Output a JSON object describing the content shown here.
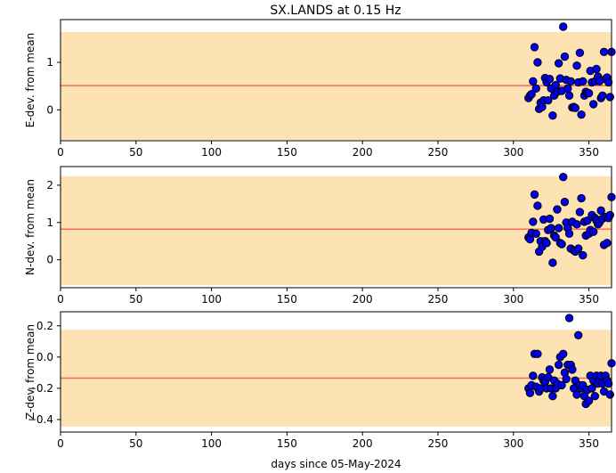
{
  "title": "SX.LANDS at 0.15 Hz",
  "colors": {
    "band": "#fde3b4",
    "mean_line": "#f46b5d",
    "marker_fill": "#0000ee",
    "marker_edge": "#000000"
  },
  "chart_data": [
    {
      "type": "scatter",
      "ylabel": "E-dev. from mean",
      "xlim": [
        0,
        365
      ],
      "ylim": [
        -0.65,
        1.9
      ],
      "xticks": [
        "0",
        "50",
        "100",
        "150",
        "200",
        "250",
        "300",
        "350"
      ],
      "yticks": [
        "0",
        "1"
      ],
      "band": [
        -0.63,
        1.64
      ],
      "mean": 0.51,
      "x": [
        310,
        311,
        312,
        313,
        314,
        315,
        316,
        317,
        318,
        319,
        320,
        321,
        322,
        323,
        324,
        325,
        326,
        327,
        328,
        329,
        330,
        331,
        332,
        333,
        334,
        335,
        336,
        337,
        338,
        339,
        340,
        341,
        342,
        343,
        344,
        345,
        346,
        347,
        348,
        349,
        350,
        351,
        352,
        353,
        354,
        355,
        356,
        357,
        358,
        359,
        360,
        361,
        362,
        363,
        364,
        365
      ],
      "values": [
        0.25,
        0.3,
        0.33,
        0.6,
        1.32,
        0.45,
        1.0,
        0.02,
        0.15,
        0.06,
        0.2,
        0.67,
        0.58,
        0.2,
        0.65,
        0.45,
        -0.12,
        0.3,
        0.52,
        0.38,
        0.98,
        0.66,
        0.4,
        1.75,
        1.12,
        0.63,
        0.45,
        0.3,
        0.6,
        0.05,
        0.06,
        0.04,
        0.93,
        0.58,
        1.2,
        -0.1,
        0.6,
        0.3,
        0.38,
        0.35,
        0.35,
        0.82,
        0.58,
        0.12,
        0.6,
        0.86,
        0.7,
        0.6,
        0.25,
        0.3,
        1.22,
        0.65,
        0.68,
        0.58,
        0.27,
        1.22
      ]
    },
    {
      "type": "scatter",
      "ylabel": "N-dev. from mean",
      "xlim": [
        0,
        365
      ],
      "ylim": [
        -0.75,
        2.5
      ],
      "xticks": [
        "0",
        "50",
        "100",
        "150",
        "200",
        "250",
        "300",
        "350"
      ],
      "yticks": [
        "0",
        "1",
        "2"
      ],
      "band": [
        -0.68,
        2.24
      ],
      "mean": 0.82,
      "x": [
        310,
        311,
        312,
        313,
        314,
        315,
        316,
        317,
        318,
        319,
        320,
        321,
        322,
        323,
        324,
        325,
        326,
        327,
        328,
        329,
        330,
        331,
        332,
        333,
        334,
        335,
        336,
        337,
        338,
        339,
        340,
        341,
        342,
        343,
        344,
        345,
        346,
        347,
        348,
        349,
        350,
        351,
        352,
        353,
        354,
        355,
        356,
        357,
        358,
        359,
        360,
        361,
        362,
        363,
        364,
        365
      ],
      "values": [
        0.6,
        0.55,
        0.72,
        1.02,
        1.75,
        0.7,
        1.45,
        0.22,
        0.5,
        0.35,
        1.08,
        0.5,
        0.45,
        0.8,
        1.1,
        0.85,
        -0.08,
        0.65,
        0.6,
        1.35,
        0.85,
        0.45,
        0.42,
        2.22,
        1.55,
        1.0,
        0.85,
        0.7,
        0.3,
        1.02,
        0.25,
        0.22,
        0.95,
        0.3,
        1.28,
        1.65,
        0.12,
        1.02,
        0.65,
        1.05,
        0.7,
        0.8,
        1.2,
        0.75,
        1.12,
        1.05,
        0.95,
        1.0,
        1.32,
        1.1,
        0.4,
        1.15,
        0.45,
        1.12,
        1.2,
        1.68
      ]
    },
    {
      "type": "scatter",
      "ylabel": "Z-dev. from mean",
      "xlabel": "days since 05-May-2024",
      "xlim": [
        0,
        365
      ],
      "ylim": [
        -0.48,
        0.29
      ],
      "xticks": [
        "0",
        "50",
        "100",
        "150",
        "200",
        "250",
        "300",
        "350"
      ],
      "yticks": [
        "0.2",
        "0.0",
        "−0.2",
        "−0.4"
      ],
      "band": [
        -0.445,
        0.175
      ],
      "mean": -0.135,
      "x": [
        310,
        311,
        312,
        313,
        314,
        315,
        316,
        317,
        318,
        319,
        320,
        321,
        322,
        323,
        324,
        325,
        326,
        327,
        328,
        329,
        330,
        331,
        332,
        333,
        334,
        335,
        336,
        337,
        338,
        339,
        340,
        341,
        342,
        343,
        344,
        345,
        346,
        347,
        348,
        349,
        350,
        351,
        352,
        353,
        354,
        355,
        356,
        357,
        358,
        359,
        360,
        361,
        362,
        363,
        364,
        365
      ],
      "values": [
        -0.2,
        -0.23,
        -0.18,
        -0.12,
        0.02,
        -0.19,
        0.02,
        -0.22,
        -0.2,
        -0.13,
        -0.15,
        -0.16,
        -0.2,
        -0.13,
        -0.08,
        -0.2,
        -0.25,
        -0.15,
        -0.2,
        -0.17,
        -0.05,
        0.0,
        -0.18,
        0.02,
        -0.1,
        -0.14,
        -0.05,
        0.25,
        -0.05,
        -0.08,
        -0.2,
        -0.15,
        -0.24,
        0.14,
        -0.18,
        -0.2,
        -0.18,
        -0.25,
        -0.3,
        -0.21,
        -0.28,
        -0.12,
        -0.2,
        -0.15,
        -0.25,
        -0.12,
        -0.17,
        -0.15,
        -0.12,
        -0.17,
        -0.22,
        -0.12,
        -0.15,
        -0.17,
        -0.24,
        -0.04
      ]
    }
  ]
}
